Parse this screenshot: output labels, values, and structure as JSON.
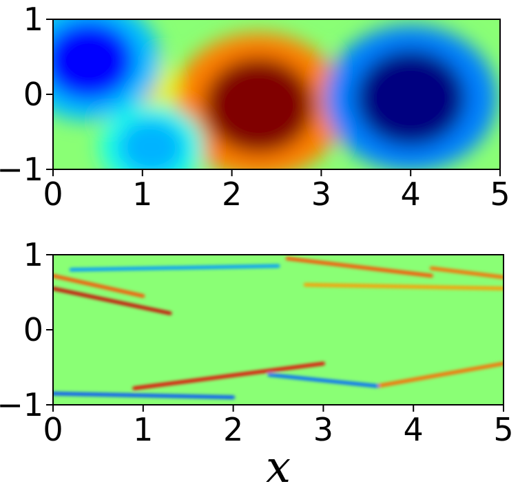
{
  "chart_data": [
    {
      "type": "heatmap",
      "colormap": "jet",
      "xlim": [
        0,
        5
      ],
      "ylim": [
        -1,
        1
      ],
      "xticks": [
        0,
        1,
        2,
        3,
        4,
        5
      ],
      "yticks": [
        -1,
        0,
        1
      ],
      "xtick_labels": [
        "0",
        "1",
        "2",
        "3",
        "4",
        "5"
      ],
      "ytick_labels": [
        "−1",
        "0",
        "1"
      ],
      "xlabel": "",
      "ylabel": "",
      "grid": false,
      "features": [
        {
          "kind": "high",
          "x": 2.3,
          "y": -0.15,
          "level": 1.0
        },
        {
          "kind": "high",
          "x": 0.85,
          "y": 0.1,
          "level": 0.35
        },
        {
          "kind": "low",
          "x": 4.0,
          "y": -0.05,
          "level": -1.0
        },
        {
          "kind": "low",
          "x": 0.4,
          "y": 0.45,
          "level": -0.75
        },
        {
          "kind": "low",
          "x": 1.1,
          "y": -0.7,
          "level": -0.4
        }
      ]
    },
    {
      "type": "heatmap",
      "colormap": "jet",
      "xlim": [
        0,
        5
      ],
      "ylim": [
        -1,
        1
      ],
      "xticks": [
        0,
        1,
        2,
        3,
        4,
        5
      ],
      "yticks": [
        -1,
        0,
        1
      ],
      "xtick_labels": [
        "0",
        "1",
        "2",
        "3",
        "4",
        "5"
      ],
      "ytick_labels": [
        "−1",
        "0",
        "1"
      ],
      "xlabel": "x",
      "ylabel": "",
      "grid": false,
      "streaks": [
        {
          "x0": 0.0,
          "y0": 0.55,
          "x1": 1.3,
          "y1": 0.22,
          "level": 0.85
        },
        {
          "x0": 0.0,
          "y0": 0.72,
          "x1": 1.0,
          "y1": 0.45,
          "level": 0.6
        },
        {
          "x0": 0.9,
          "y0": -0.78,
          "x1": 3.0,
          "y1": -0.45,
          "level": 0.8
        },
        {
          "x0": 2.6,
          "y0": 0.95,
          "x1": 4.2,
          "y1": 0.72,
          "level": 0.6
        },
        {
          "x0": 4.2,
          "y0": 0.82,
          "x1": 5.0,
          "y1": 0.7,
          "level": 0.55
        },
        {
          "x0": 2.8,
          "y0": 0.6,
          "x1": 5.0,
          "y1": 0.55,
          "level": 0.45
        },
        {
          "x0": 3.6,
          "y0": -0.75,
          "x1": 5.0,
          "y1": -0.45,
          "level": 0.55
        },
        {
          "x0": 0.0,
          "y0": -0.85,
          "x1": 2.0,
          "y1": -0.9,
          "level": -0.6
        },
        {
          "x0": 2.4,
          "y0": -0.6,
          "x1": 3.6,
          "y1": -0.75,
          "level": -0.55
        },
        {
          "x0": 0.2,
          "y0": 0.8,
          "x1": 2.5,
          "y1": 0.85,
          "level": -0.45
        }
      ]
    }
  ]
}
